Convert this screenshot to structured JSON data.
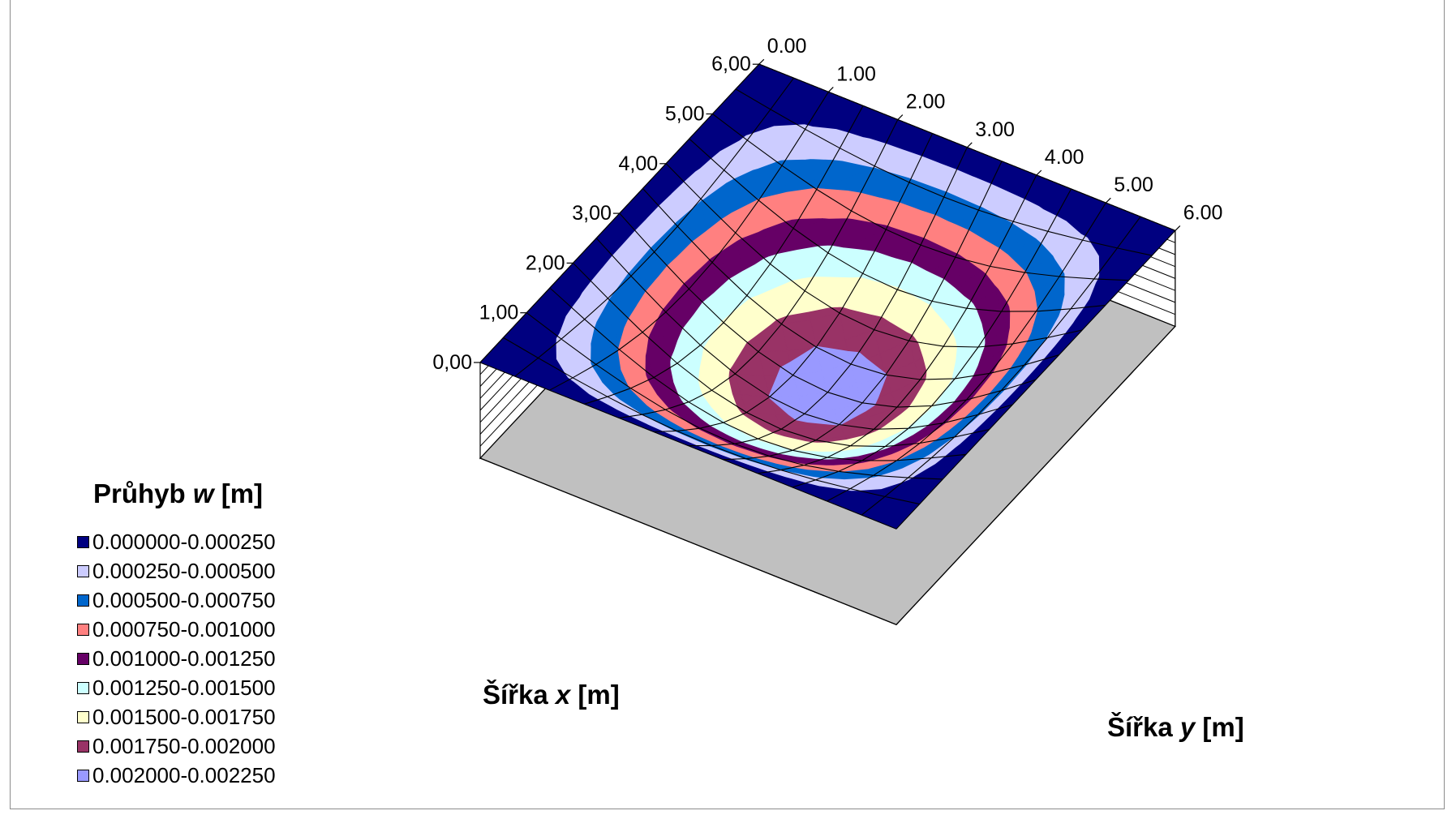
{
  "chart_data": {
    "type": "surface",
    "xlabel_prefix": "Šířka ",
    "xlabel_var": "x",
    "xlabel_unit": " [m]",
    "ylabel_prefix": "Šířka ",
    "ylabel_var": "y",
    "ylabel_unit": " [m]",
    "legend_title_prefix": "Průhyb ",
    "legend_title_var": "w",
    "legend_title_unit": " [m]",
    "x_ticks": [
      "0,00",
      "1,00",
      "2,00",
      "3,00",
      "4,00",
      "5,00",
      "6,00"
    ],
    "y_ticks": [
      "0.00",
      "1.00",
      "2.00",
      "3.00",
      "4.00",
      "5.00",
      "6.00"
    ],
    "x": [
      0,
      0.5,
      1,
      1.5,
      2,
      2.5,
      3,
      3.5,
      4,
      4.5,
      5,
      5.5,
      6
    ],
    "y": [
      0,
      0.5,
      1,
      1.5,
      2,
      2.5,
      3,
      3.5,
      4,
      4.5,
      5,
      5.5,
      6
    ],
    "w_max": 0.00215,
    "w_formula": "w_max * sin(pi*x/6) * sin(pi*y/6)",
    "bands": [
      {
        "range": "0.000000-0.000250",
        "color": "#000080"
      },
      {
        "range": "0.000250-0.000500",
        "color": "#CCCCFF"
      },
      {
        "range": "0.000500-0.000750",
        "color": "#0066CC"
      },
      {
        "range": "0.000750-0.001000",
        "color": "#FF8080"
      },
      {
        "range": "0.001000-0.001250",
        "color": "#660066"
      },
      {
        "range": "0.001250-0.001500",
        "color": "#CCFFFF"
      },
      {
        "range": "0.001500-0.001750",
        "color": "#FFFFCC"
      },
      {
        "range": "0.001750-0.002000",
        "color": "#993366"
      },
      {
        "range": "0.002000-0.002250",
        "color": "#9999FF"
      }
    ],
    "floor_color": "#C0C0C0"
  }
}
